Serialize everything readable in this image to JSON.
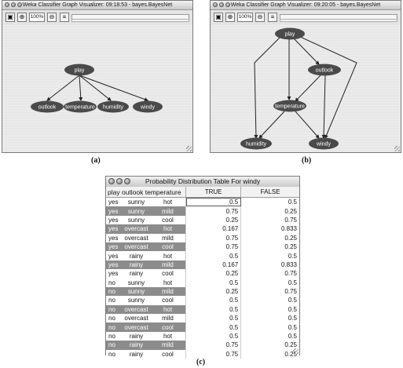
{
  "panel_a": {
    "title": "Weka Classifier Graph Visualizer: 09:18:53 - bayes.BayesNet",
    "zoom": "100%",
    "nodes": [
      "play",
      "outlook",
      "temperature",
      "humidity",
      "windy"
    ],
    "caption": "(a)"
  },
  "panel_b": {
    "title": "Weka Classifier Graph Visualizer: 09:20:05 - bayes.BayesNet",
    "zoom": "100%",
    "nodes": [
      "play",
      "outlook",
      "temperature",
      "humidity",
      "windy"
    ],
    "caption": "(b)"
  },
  "panel_c": {
    "title": "Probability Distribution Table For windy",
    "headers": {
      "attrs": "play outlook temperature",
      "true": "TRUE",
      "false": "FALSE"
    },
    "rows": [
      {
        "play": "yes",
        "outlook": "sunny",
        "temperature": "hot",
        "true": "0.5",
        "false": "0.5"
      },
      {
        "play": "yes",
        "outlook": "sunny",
        "temperature": "mild",
        "true": "0.75",
        "false": "0.25"
      },
      {
        "play": "yes",
        "outlook": "sunny",
        "temperature": "cool",
        "true": "0.25",
        "false": "0.75"
      },
      {
        "play": "yes",
        "outlook": "overcast",
        "temperature": "hot",
        "true": "0.167",
        "false": "0.833"
      },
      {
        "play": "yes",
        "outlook": "overcast",
        "temperature": "mild",
        "true": "0.75",
        "false": "0.25"
      },
      {
        "play": "yes",
        "outlook": "overcast",
        "temperature": "cool",
        "true": "0.75",
        "false": "0.25"
      },
      {
        "play": "yes",
        "outlook": "rainy",
        "temperature": "hot",
        "true": "0.5",
        "false": "0.5"
      },
      {
        "play": "yes",
        "outlook": "rainy",
        "temperature": "mild",
        "true": "0.167",
        "false": "0.833"
      },
      {
        "play": "yes",
        "outlook": "rainy",
        "temperature": "cool",
        "true": "0.25",
        "false": "0.75"
      },
      {
        "play": "no",
        "outlook": "sunny",
        "temperature": "hot",
        "true": "0.5",
        "false": "0.5"
      },
      {
        "play": "no",
        "outlook": "sunny",
        "temperature": "mild",
        "true": "0.25",
        "false": "0.75"
      },
      {
        "play": "no",
        "outlook": "sunny",
        "temperature": "cool",
        "true": "0.5",
        "false": "0.5"
      },
      {
        "play": "no",
        "outlook": "overcast",
        "temperature": "hot",
        "true": "0.5",
        "false": "0.5"
      },
      {
        "play": "no",
        "outlook": "overcast",
        "temperature": "mild",
        "true": "0.5",
        "false": "0.5"
      },
      {
        "play": "no",
        "outlook": "overcast",
        "temperature": "cool",
        "true": "0.5",
        "false": "0.5"
      },
      {
        "play": "no",
        "outlook": "rainy",
        "temperature": "hot",
        "true": "0.5",
        "false": "0.5"
      },
      {
        "play": "no",
        "outlook": "rainy",
        "temperature": "mild",
        "true": "0.75",
        "false": "0.25"
      },
      {
        "play": "no",
        "outlook": "rainy",
        "temperature": "cool",
        "true": "0.75",
        "false": "0.25"
      }
    ],
    "caption": "(c)"
  },
  "icons": [
    "window-close-icon",
    "window-minimize-icon",
    "window-zoom-icon",
    "save-icon",
    "zoom-in-icon",
    "zoom-out-icon",
    "layout-icon",
    "resize-grip-icon"
  ],
  "colors": {
    "node_fill": "#4a4a4a",
    "shaded_row": "#8c8c8c",
    "edge": "#222222"
  }
}
